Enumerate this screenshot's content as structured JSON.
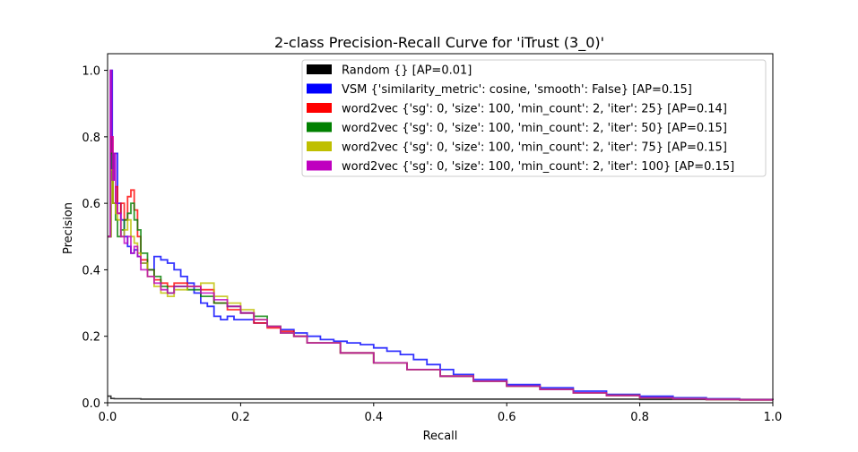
{
  "chart_data": {
    "type": "line",
    "title": "2-class Precision-Recall Curve for 'iTrust (3_0)'",
    "xlabel": "Recall",
    "ylabel": "Precision",
    "xlim": [
      0.0,
      1.0
    ],
    "ylim": [
      0.0,
      1.05
    ],
    "xticks": [
      "0.0",
      "0.2",
      "0.4",
      "0.6",
      "0.8",
      "1.0"
    ],
    "yticks": [
      "0.0",
      "0.2",
      "0.4",
      "0.6",
      "0.8",
      "1.0"
    ],
    "grid": false,
    "legend_position": "top-right",
    "series": [
      {
        "name": "Random {} [AP=0.01]",
        "color": "#000000",
        "x": [
          0.0,
          0.005,
          0.01,
          0.02,
          0.05,
          0.1,
          0.2,
          0.4,
          0.6,
          0.8,
          1.0
        ],
        "y": [
          0.02,
          0.013,
          0.012,
          0.012,
          0.011,
          0.011,
          0.011,
          0.011,
          0.011,
          0.01,
          0.01
        ]
      },
      {
        "name": "VSM {'similarity_metric': cosine, 'smooth': False} [AP=0.15]",
        "color": "#0000ff",
        "x": [
          0.0,
          0.005,
          0.007,
          0.01,
          0.015,
          0.02,
          0.025,
          0.03,
          0.035,
          0.04,
          0.045,
          0.05,
          0.06,
          0.07,
          0.08,
          0.09,
          0.1,
          0.11,
          0.12,
          0.13,
          0.14,
          0.15,
          0.16,
          0.17,
          0.18,
          0.19,
          0.2,
          0.22,
          0.24,
          0.26,
          0.28,
          0.3,
          0.32,
          0.34,
          0.36,
          0.38,
          0.4,
          0.42,
          0.44,
          0.46,
          0.48,
          0.5,
          0.52,
          0.55,
          0.6,
          0.65,
          0.7,
          0.75,
          0.8,
          0.85,
          0.9,
          0.95,
          1.0
        ],
        "y": [
          0.5,
          1.0,
          0.67,
          0.75,
          0.6,
          0.55,
          0.5,
          0.47,
          0.45,
          0.46,
          0.44,
          0.42,
          0.4,
          0.44,
          0.43,
          0.42,
          0.4,
          0.38,
          0.36,
          0.33,
          0.3,
          0.29,
          0.26,
          0.25,
          0.26,
          0.25,
          0.25,
          0.24,
          0.23,
          0.22,
          0.21,
          0.2,
          0.19,
          0.185,
          0.18,
          0.175,
          0.165,
          0.155,
          0.145,
          0.13,
          0.115,
          0.1,
          0.085,
          0.07,
          0.055,
          0.045,
          0.035,
          0.025,
          0.02,
          0.015,
          0.012,
          0.01,
          0.008
        ]
      },
      {
        "name": "word2vec {'sg': 0, 'size': 100, 'min_count': 2, 'iter': 25} [AP=0.14]",
        "color": "#ff0000",
        "x": [
          0.0,
          0.005,
          0.008,
          0.012,
          0.015,
          0.02,
          0.025,
          0.03,
          0.035,
          0.04,
          0.045,
          0.05,
          0.06,
          0.07,
          0.08,
          0.09,
          0.1,
          0.12,
          0.14,
          0.16,
          0.18,
          0.2,
          0.22,
          0.24,
          0.26,
          0.28,
          0.3,
          0.35,
          0.4,
          0.45,
          0.5,
          0.55,
          0.6,
          0.65,
          0.7,
          0.75,
          0.8,
          0.85,
          0.9,
          0.95,
          1.0
        ],
        "y": [
          0.5,
          0.8,
          0.6,
          0.65,
          0.57,
          0.6,
          0.55,
          0.62,
          0.64,
          0.58,
          0.5,
          0.43,
          0.4,
          0.37,
          0.36,
          0.35,
          0.36,
          0.35,
          0.34,
          0.3,
          0.28,
          0.27,
          0.24,
          0.225,
          0.215,
          0.2,
          0.18,
          0.15,
          0.12,
          0.1,
          0.08,
          0.065,
          0.05,
          0.04,
          0.03,
          0.022,
          0.015,
          0.012,
          0.01,
          0.009,
          0.008
        ]
      },
      {
        "name": "word2vec {'sg': 0, 'size': 100, 'min_count': 2, 'iter': 50} [AP=0.15]",
        "color": "#008000",
        "x": [
          0.0,
          0.005,
          0.008,
          0.012,
          0.015,
          0.02,
          0.025,
          0.03,
          0.035,
          0.04,
          0.045,
          0.05,
          0.06,
          0.07,
          0.08,
          0.09,
          0.1,
          0.12,
          0.14,
          0.16,
          0.18,
          0.2,
          0.22,
          0.24,
          0.26,
          0.28,
          0.3,
          0.35,
          0.4,
          0.45,
          0.5,
          0.55,
          0.6,
          0.65,
          0.7,
          0.75,
          0.8,
          0.85,
          0.9,
          0.95,
          1.0
        ],
        "y": [
          0.5,
          0.75,
          0.6,
          0.55,
          0.5,
          0.52,
          0.55,
          0.57,
          0.6,
          0.55,
          0.52,
          0.45,
          0.4,
          0.38,
          0.35,
          0.33,
          0.35,
          0.34,
          0.32,
          0.3,
          0.29,
          0.27,
          0.26,
          0.23,
          0.21,
          0.2,
          0.18,
          0.15,
          0.12,
          0.1,
          0.08,
          0.065,
          0.05,
          0.04,
          0.03,
          0.022,
          0.015,
          0.012,
          0.01,
          0.009,
          0.008
        ]
      },
      {
        "name": "word2vec {'sg': 0, 'size': 100, 'min_count': 2, 'iter': 75} [AP=0.15]",
        "color": "#bfbf00",
        "x": [
          0.0,
          0.005,
          0.008,
          0.012,
          0.015,
          0.02,
          0.025,
          0.03,
          0.035,
          0.04,
          0.045,
          0.05,
          0.06,
          0.07,
          0.08,
          0.09,
          0.1,
          0.12,
          0.14,
          0.16,
          0.18,
          0.2,
          0.22,
          0.24,
          0.26,
          0.28,
          0.3,
          0.35,
          0.4,
          0.45,
          0.5,
          0.55,
          0.6,
          0.65,
          0.7,
          0.75,
          0.8,
          0.85,
          0.9,
          0.95,
          1.0
        ],
        "y": [
          0.5,
          0.7,
          0.6,
          0.57,
          0.55,
          0.5,
          0.52,
          0.55,
          0.5,
          0.48,
          0.45,
          0.42,
          0.38,
          0.35,
          0.33,
          0.32,
          0.34,
          0.35,
          0.36,
          0.32,
          0.3,
          0.28,
          0.25,
          0.23,
          0.21,
          0.2,
          0.18,
          0.15,
          0.12,
          0.1,
          0.08,
          0.065,
          0.05,
          0.04,
          0.03,
          0.022,
          0.015,
          0.012,
          0.01,
          0.009,
          0.008
        ]
      },
      {
        "name": "word2vec {'sg': 0, 'size': 100, 'min_count': 2, 'iter': 100} [AP=0.15]",
        "color": "#bf00bf",
        "x": [
          0.0,
          0.004,
          0.006,
          0.008,
          0.01,
          0.012,
          0.015,
          0.02,
          0.025,
          0.03,
          0.035,
          0.04,
          0.045,
          0.05,
          0.06,
          0.07,
          0.08,
          0.09,
          0.1,
          0.12,
          0.14,
          0.16,
          0.18,
          0.2,
          0.22,
          0.24,
          0.26,
          0.28,
          0.3,
          0.35,
          0.4,
          0.45,
          0.5,
          0.55,
          0.6,
          0.65,
          0.7,
          0.75,
          0.8,
          0.85,
          0.9,
          0.95,
          1.0
        ],
        "y": [
          0.5,
          1.0,
          0.8,
          0.67,
          0.75,
          0.6,
          0.57,
          0.5,
          0.48,
          0.5,
          0.45,
          0.47,
          0.44,
          0.4,
          0.38,
          0.36,
          0.34,
          0.33,
          0.35,
          0.35,
          0.33,
          0.31,
          0.29,
          0.27,
          0.25,
          0.23,
          0.21,
          0.2,
          0.18,
          0.15,
          0.12,
          0.1,
          0.08,
          0.065,
          0.05,
          0.04,
          0.03,
          0.022,
          0.015,
          0.012,
          0.01,
          0.009,
          0.008
        ]
      }
    ]
  }
}
